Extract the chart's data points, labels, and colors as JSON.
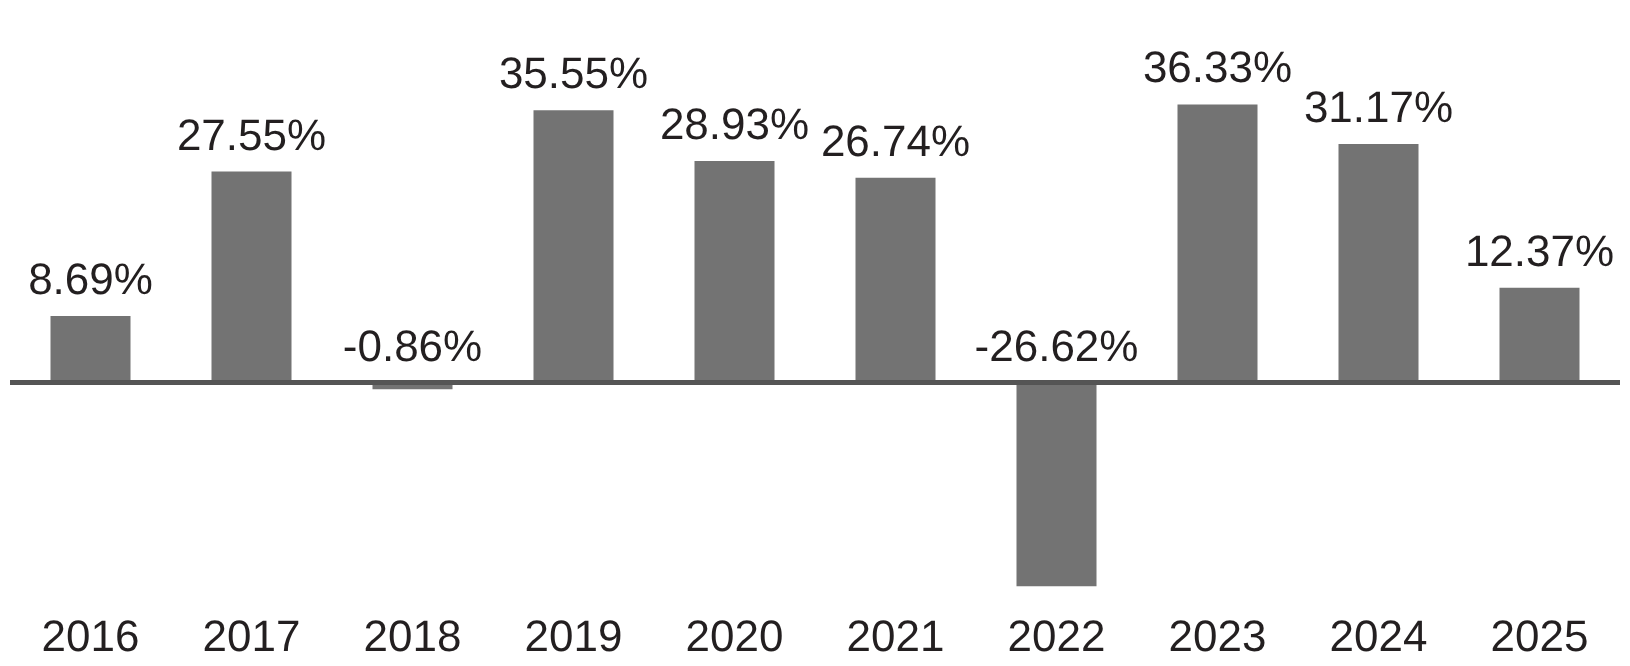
{
  "chart_data": {
    "type": "bar",
    "categories": [
      "2016",
      "2017",
      "2018",
      "2019",
      "2020",
      "2021",
      "2022",
      "2023",
      "2024",
      "2025"
    ],
    "values": [
      8.69,
      27.55,
      -0.86,
      35.55,
      28.93,
      26.74,
      -26.62,
      36.33,
      31.17,
      12.37
    ],
    "value_labels": [
      "8.69%",
      "27.55%",
      "-0.86%",
      "35.55%",
      "28.93%",
      "26.74%",
      "-26.62%",
      "36.33%",
      "31.17%",
      "12.37%"
    ],
    "color": "#737373",
    "grid": false
  }
}
